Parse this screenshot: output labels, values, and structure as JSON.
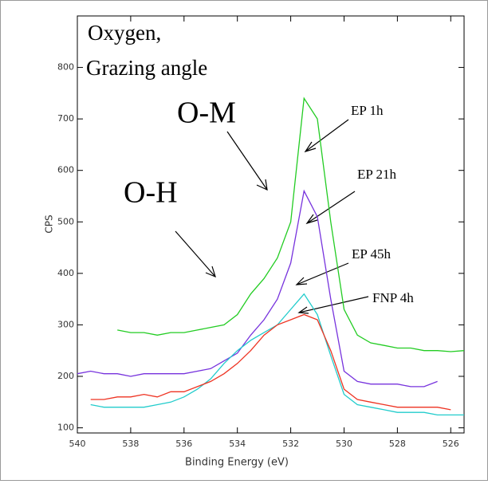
{
  "chart_data": {
    "type": "line",
    "x_label": "Binding Energy (eV)",
    "y_label": "CPS",
    "annotations": [
      "Oxygen,",
      "Grazing angle",
      "O-M",
      "O-H"
    ],
    "x": [
      540,
      539.5,
      539,
      538.5,
      538,
      537.5,
      537,
      536.5,
      536,
      535.5,
      535,
      534.5,
      534,
      533.5,
      533,
      532.5,
      532,
      531.5,
      531,
      530.5,
      530,
      529.5,
      529,
      528.5,
      528,
      527.5,
      527,
      526.5,
      526,
      525.5
    ],
    "xlim": [
      540,
      525.5
    ],
    "xticks": [
      540,
      538,
      536,
      534,
      532,
      530,
      528,
      526
    ],
    "ylim": [
      90,
      900
    ],
    "yticks": [
      100,
      200,
      300,
      400,
      500,
      600,
      700,
      800
    ],
    "series": [
      {
        "name": "EP 1h",
        "color": "#22cc22",
        "values": [
          null,
          null,
          null,
          290,
          285,
          285,
          280,
          285,
          285,
          290,
          295,
          300,
          320,
          360,
          390,
          430,
          500,
          740,
          700,
          500,
          330,
          280,
          265,
          260,
          255,
          255,
          250,
          250,
          248,
          250
        ]
      },
      {
        "name": "EP 21h",
        "color": "#7733dd",
        "values": [
          205,
          210,
          205,
          205,
          200,
          205,
          205,
          205,
          205,
          210,
          215,
          230,
          245,
          280,
          310,
          350,
          420,
          560,
          510,
          350,
          210,
          190,
          185,
          185,
          185,
          180,
          180,
          190,
          null,
          null
        ]
      },
      {
        "name": "EP 45h",
        "color": "#22cccc",
        "values": [
          null,
          145,
          140,
          140,
          140,
          140,
          145,
          150,
          160,
          175,
          195,
          225,
          250,
          270,
          285,
          300,
          330,
          360,
          320,
          240,
          165,
          145,
          140,
          135,
          130,
          130,
          130,
          125,
          125,
          125
        ]
      },
      {
        "name": "FNP 4h",
        "color": "#ee3322",
        "values": [
          null,
          155,
          155,
          160,
          160,
          165,
          160,
          170,
          170,
          180,
          190,
          205,
          225,
          250,
          280,
          300,
          310,
          320,
          310,
          250,
          175,
          155,
          150,
          145,
          140,
          140,
          140,
          140,
          135,
          null
        ]
      }
    ]
  }
}
